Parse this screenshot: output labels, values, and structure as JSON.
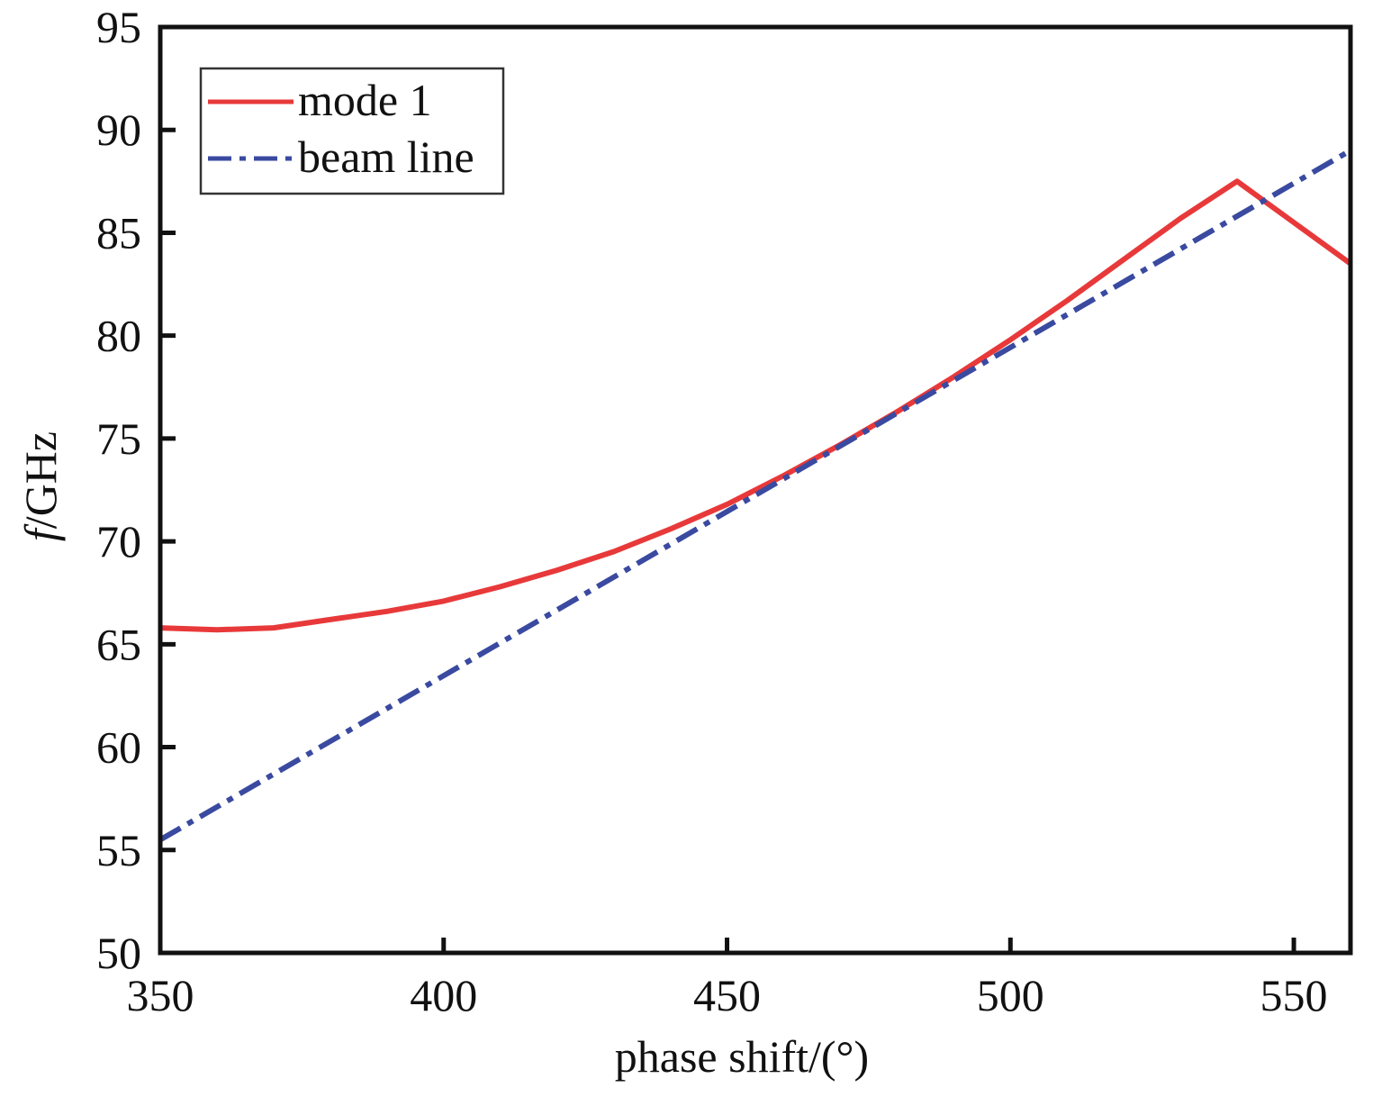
{
  "chart_data": {
    "type": "line",
    "xlabel": "phase shift/(°)",
    "ylabel_italic": "f",
    "ylabel_rest": "/GHz",
    "xlim": [
      350,
      560
    ],
    "ylim": [
      50,
      95
    ],
    "xticks": [
      350,
      400,
      450,
      500,
      550
    ],
    "yticks": [
      50,
      55,
      60,
      65,
      70,
      75,
      80,
      85,
      90,
      95
    ],
    "legend_position": "top-left",
    "grid": false,
    "series": [
      {
        "name": "mode 1",
        "color": "#e8393a",
        "style": "solid",
        "x": [
          350,
          360,
          370,
          380,
          390,
          400,
          410,
          420,
          430,
          440,
          450,
          460,
          470,
          480,
          490,
          500,
          510,
          520,
          530,
          540,
          550,
          560
        ],
        "y": [
          65.8,
          65.7,
          65.8,
          66.2,
          66.6,
          67.1,
          67.8,
          68.6,
          69.5,
          70.6,
          71.8,
          73.2,
          74.7,
          76.3,
          78.0,
          79.8,
          81.7,
          83.7,
          85.7,
          87.5,
          85.5,
          83.5
        ]
      },
      {
        "name": "beam line",
        "color": "#3a4aa0",
        "style": "dashdot",
        "x": [
          350,
          560
        ],
        "y": [
          55.5,
          89.0
        ]
      }
    ]
  }
}
